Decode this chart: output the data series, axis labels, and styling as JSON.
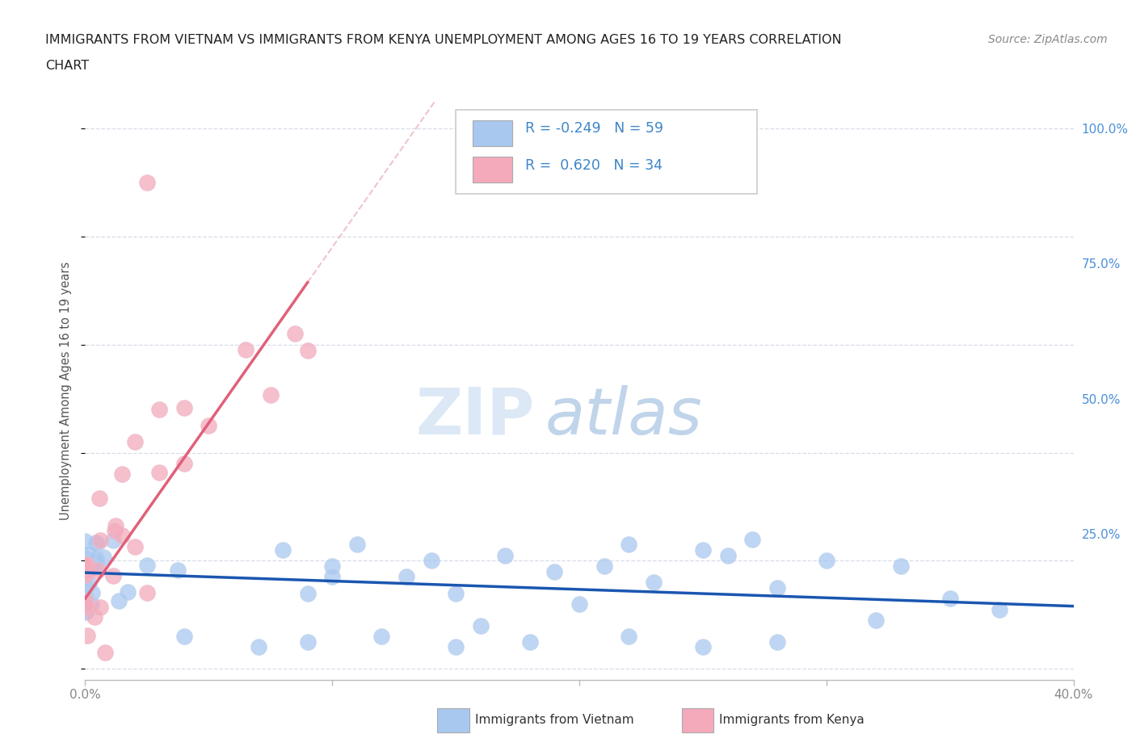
{
  "title_line1": "IMMIGRANTS FROM VIETNAM VS IMMIGRANTS FROM KENYA UNEMPLOYMENT AMONG AGES 16 TO 19 YEARS CORRELATION",
  "title_line2": "CHART",
  "source_text": "Source: ZipAtlas.com",
  "ylabel": "Unemployment Among Ages 16 to 19 years",
  "xlim": [
    0.0,
    0.4
  ],
  "ylim": [
    -0.02,
    1.05
  ],
  "vietnam_color": "#a8c8f0",
  "kenya_color": "#f4aabb",
  "vietnam_line_color": "#1a56b0",
  "kenya_line_color": "#e0607a",
  "kenya_dashed_color": "#e8aabb",
  "background_color": "#ffffff",
  "grid_color": "#d8dde8",
  "legend_r_vietnam": "-0.249",
  "legend_n_vietnam": "59",
  "legend_r_kenya": "0.620",
  "legend_n_kenya": "34",
  "watermark_zip_color": "#d0dff0",
  "watermark_atlas_color": "#b8cce8",
  "right_tick_color": "#4a90d9",
  "axis_tick_color": "#888888"
}
